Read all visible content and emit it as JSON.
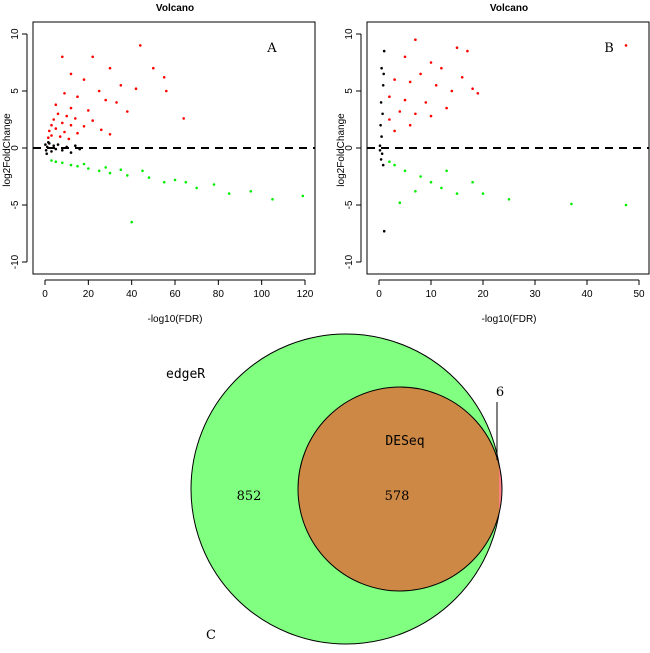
{
  "chart_data": [
    {
      "type": "scatter",
      "panel": "A",
      "title": "Volcano",
      "xlabel": "-log10(FDR)",
      "ylabel": "log2FoldChange",
      "xlim": [
        0,
        120
      ],
      "ylim": [
        -10,
        10
      ],
      "xticks": [
        0,
        20,
        40,
        60,
        80,
        100,
        120
      ],
      "yticks": [
        -10,
        -5,
        0,
        5,
        10
      ],
      "threshold_line_y": 0,
      "legend": "none",
      "series": [
        {
          "name": "up-regulated",
          "color": "#ff0000",
          "points": [
            [
              44,
              9
            ],
            [
              8,
              8
            ],
            [
              22,
              8
            ],
            [
              30,
              7
            ],
            [
              50,
              7
            ],
            [
              12,
              6.5
            ],
            [
              55,
              6.2
            ],
            [
              18,
              6
            ],
            [
              35,
              5.5
            ],
            [
              42,
              5.2
            ],
            [
              25,
              5
            ],
            [
              56,
              5
            ],
            [
              9,
              4.8
            ],
            [
              15,
              4.5
            ],
            [
              28,
              4.2
            ],
            [
              33,
              4
            ],
            [
              5,
              3.8
            ],
            [
              12,
              3.5
            ],
            [
              20,
              3.3
            ],
            [
              38,
              3.2
            ],
            [
              6,
              3
            ],
            [
              10,
              2.8
            ],
            [
              14,
              2.6
            ],
            [
              64,
              2.6
            ],
            [
              4,
              2.5
            ],
            [
              22,
              2.4
            ],
            [
              8,
              2.2
            ],
            [
              3,
              2
            ],
            [
              12,
              2
            ],
            [
              18,
              1.9
            ],
            [
              5,
              1.7
            ],
            [
              26,
              1.6
            ],
            [
              2,
              1.5
            ],
            [
              9,
              1.4
            ],
            [
              15,
              1.3
            ],
            [
              3,
              1.1
            ],
            [
              7,
              1
            ],
            [
              1.5,
              0.9
            ],
            [
              30,
              1.2
            ],
            [
              11,
              0.8
            ]
          ]
        },
        {
          "name": "not-significant",
          "color": "#000000",
          "points": [
            [
              0.2,
              0.3
            ],
            [
              0.5,
              -0.2
            ],
            [
              1,
              0.1
            ],
            [
              2,
              0.4
            ],
            [
              3,
              -0.3
            ],
            [
              4,
              0.2
            ],
            [
              5,
              -0.1
            ],
            [
              6,
              0.3
            ],
            [
              8,
              -0.2
            ],
            [
              10,
              0.1
            ],
            [
              12,
              -0.4
            ],
            [
              14,
              0.2
            ],
            [
              16,
              -0.1
            ],
            [
              0.8,
              -0.5
            ],
            [
              1.5,
              0.5
            ]
          ]
        },
        {
          "name": "down-regulated",
          "color": "#00ee00",
          "points": [
            [
              40,
              -6.5
            ],
            [
              119,
              -4.2
            ],
            [
              105,
              -4.5
            ],
            [
              85,
              -4
            ],
            [
              70,
              -3.5
            ],
            [
              55,
              -3
            ],
            [
              60,
              -2.8
            ],
            [
              48,
              -2.6
            ],
            [
              38,
              -2.4
            ],
            [
              30,
              -2.2
            ],
            [
              25,
              -2
            ],
            [
              20,
              -1.8
            ],
            [
              15,
              -1.6
            ],
            [
              12,
              -1.5
            ],
            [
              8,
              -1.3
            ],
            [
              5,
              -1.2
            ],
            [
              3,
              -1.1
            ],
            [
              35,
              -1.9
            ],
            [
              45,
              -2
            ],
            [
              28,
              -1.7
            ],
            [
              18,
              -1.4
            ],
            [
              95,
              -3.8
            ],
            [
              78,
              -3.2
            ],
            [
              65,
              -3
            ]
          ]
        }
      ]
    },
    {
      "type": "scatter",
      "panel": "B",
      "title": "Volcano",
      "xlabel": "-log10(FDR)",
      "ylabel": "log2FoldChange",
      "xlim": [
        0,
        50
      ],
      "ylim": [
        -10,
        10
      ],
      "xticks": [
        0,
        10,
        20,
        30,
        40,
        50
      ],
      "yticks": [
        -10,
        -5,
        0,
        5,
        10
      ],
      "threshold_line_y": 0,
      "legend": "none",
      "series": [
        {
          "name": "up-regulated",
          "color": "#ff0000",
          "points": [
            [
              7,
              9.5
            ],
            [
              47.5,
              9
            ],
            [
              15,
              8.8
            ],
            [
              17,
              8.5
            ],
            [
              5,
              8
            ],
            [
              10,
              7.5
            ],
            [
              12,
              7
            ],
            [
              8,
              6.5
            ],
            [
              16,
              6.2
            ],
            [
              3,
              6
            ],
            [
              6,
              5.8
            ],
            [
              11,
              5.5
            ],
            [
              14,
              5
            ],
            [
              19,
              4.8
            ],
            [
              2,
              4.5
            ],
            [
              5,
              4.2
            ],
            [
              9,
              4
            ],
            [
              13,
              3.5
            ],
            [
              4,
              3.2
            ],
            [
              7,
              3
            ],
            [
              2,
              2.5
            ],
            [
              6,
              2
            ],
            [
              3,
              1.5
            ],
            [
              10,
              2.8
            ],
            [
              18,
              5.2
            ]
          ]
        },
        {
          "name": "not-significant",
          "color": "#000000",
          "points": [
            [
              1,
              8.5
            ],
            [
              0.5,
              7
            ],
            [
              0.8,
              5.5
            ],
            [
              0.4,
              4
            ],
            [
              0.7,
              3
            ],
            [
              0.3,
              2
            ],
            [
              0.5,
              1
            ],
            [
              0.2,
              0.2
            ],
            [
              0.6,
              -0.5
            ],
            [
              0.4,
              -1
            ],
            [
              0.8,
              -1.5
            ],
            [
              1,
              -7.3
            ],
            [
              0.2,
              -0.2
            ],
            [
              0.9,
              6.5
            ]
          ]
        },
        {
          "name": "down-regulated",
          "color": "#00ee00",
          "points": [
            [
              47.5,
              -5
            ],
            [
              37,
              -4.9
            ],
            [
              25,
              -4.5
            ],
            [
              20,
              -4
            ],
            [
              15,
              -4
            ],
            [
              12,
              -3.5
            ],
            [
              10,
              -3
            ],
            [
              8,
              -2.5
            ],
            [
              5,
              -2
            ],
            [
              3,
              -1.5
            ],
            [
              2,
              -1.2
            ],
            [
              13,
              -2
            ],
            [
              18,
              -3
            ],
            [
              4,
              -4.8
            ],
            [
              7,
              -3.8
            ]
          ]
        }
      ]
    },
    {
      "type": "venn",
      "panel": "C",
      "sets": [
        {
          "label": "edgeR",
          "color": "#80ff80"
        },
        {
          "label": "DESeq",
          "color": "#cc8844"
        }
      ],
      "regions": {
        "edgeR_only": "852",
        "both": "578",
        "DESeq_only": "6"
      },
      "deseq_only_color": "#ff8080"
    }
  ]
}
